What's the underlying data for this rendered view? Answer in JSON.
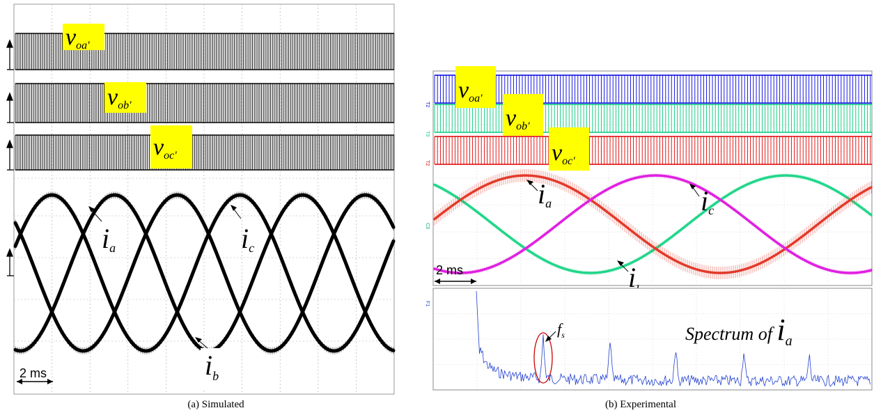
{
  "panels": {
    "a": {
      "caption": "(a) Simulated",
      "scale_label": "2 ms",
      "voltage_labels": [
        {
          "main": "v",
          "sub": "oa'"
        },
        {
          "main": "v",
          "sub": "ob'"
        },
        {
          "main": "v",
          "sub": "oc'"
        }
      ],
      "current_labels": [
        {
          "main": "i",
          "sub": "a"
        },
        {
          "main": "i",
          "sub": "c"
        },
        {
          "main": "i",
          "sub": "b"
        }
      ]
    },
    "b": {
      "caption": "(b) Experimental",
      "scale_label": "2 ms",
      "voltage_labels": [
        {
          "main": "v",
          "sub": "oa'"
        },
        {
          "main": "v",
          "sub": "ob'"
        },
        {
          "main": "v",
          "sub": "oc'"
        }
      ],
      "current_labels": [
        {
          "main": "i",
          "sub": "a"
        },
        {
          "main": "i",
          "sub": "c"
        },
        {
          "main": "i",
          "sub": "b"
        }
      ],
      "spectrum_label": {
        "text": "Spectrum of ",
        "main": "i",
        "sub": "a"
      },
      "fs_label": {
        "main": "f",
        "sub": "s"
      }
    }
  },
  "colors": {
    "label_bg": "#ffff00",
    "sim_trace": "#000000",
    "exp_a": "#0000e0",
    "exp_b": "#00c87a",
    "exp_c": "#e00000",
    "exp_ia": "#22d68a",
    "exp_ib": "#e33a2a",
    "exp_ic": "#e020e0",
    "spectrum": "#2040d0",
    "marker": "#cc0000"
  }
}
